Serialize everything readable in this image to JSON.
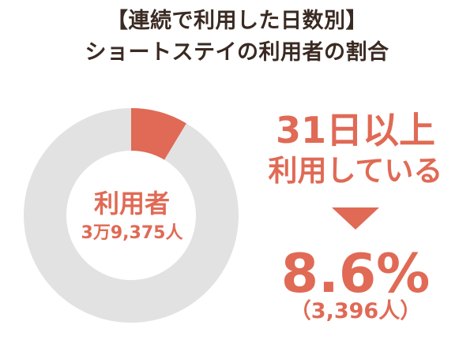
{
  "title_line1": "【連続で利用した日数別】",
  "title_line2": "ショートステイの利用者の割合",
  "donut": {
    "center_title": "利用者",
    "center_value": "3万9,375人"
  },
  "highlight": {
    "line1": "31日以上",
    "line2": "利用している",
    "percent_label": "8.6%",
    "count_label": "（3,396人）"
  },
  "colors": {
    "accent": "#e06a55",
    "ring_bg": "#e2e2e2",
    "title": "#3a2a22"
  },
  "chart_data": {
    "type": "pie",
    "title": "【連続で利用した日数別】ショートステイの利用者の割合",
    "total": 39375,
    "slices": [
      {
        "label": "31日以上利用している",
        "value": 8.6,
        "count": 3396
      },
      {
        "label": "",
        "value": 91.4
      }
    ]
  }
}
